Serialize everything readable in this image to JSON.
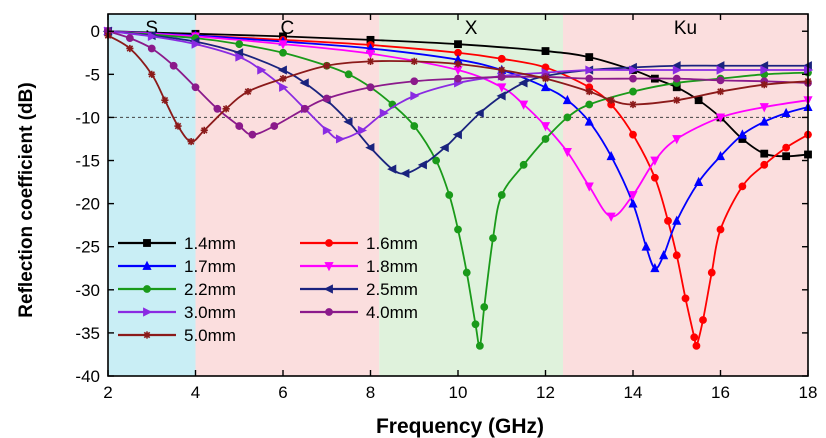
{
  "chart_data": {
    "type": "line",
    "title": "",
    "xlabel": "Frequency (GHz)",
    "ylabel": "Reflection coefficient (dB)",
    "xlim": [
      2,
      18
    ],
    "ylim": [
      -40,
      2
    ],
    "xticks": [
      2,
      4,
      6,
      8,
      10,
      12,
      14,
      16,
      18
    ],
    "yticks": [
      0,
      -5,
      -10,
      -15,
      -20,
      -25,
      -30,
      -35,
      -40
    ],
    "reference_line": -10,
    "bands": [
      {
        "label": "S",
        "x0": 2,
        "x1": 4,
        "color": "#c9eef5"
      },
      {
        "label": "C",
        "x0": 4,
        "x1": 8.2,
        "color": "#fbdede"
      },
      {
        "label": "X",
        "x0": 8.2,
        "x1": 12.4,
        "color": "#dff2dc"
      },
      {
        "label": "Ku",
        "x0": 12.4,
        "x1": 18,
        "color": "#fbdede"
      }
    ],
    "legend_position": "bottom-left",
    "series": [
      {
        "name": "1.4mm",
        "color": "#000000",
        "marker": "square",
        "points": [
          [
            2,
            0
          ],
          [
            4,
            -0.3
          ],
          [
            6,
            -0.6
          ],
          [
            8,
            -1.0
          ],
          [
            10,
            -1.5
          ],
          [
            12,
            -2.3
          ],
          [
            13,
            -3
          ],
          [
            14,
            -4.5
          ],
          [
            14.5,
            -5.5
          ],
          [
            15,
            -6.5
          ],
          [
            15.5,
            -8
          ],
          [
            16,
            -10
          ],
          [
            16.5,
            -12.5
          ],
          [
            17,
            -14.2
          ],
          [
            17.5,
            -14.5
          ],
          [
            18,
            -14.3
          ]
        ]
      },
      {
        "name": "1.6mm",
        "color": "#ff0000",
        "marker": "circle",
        "points": [
          [
            2,
            0
          ],
          [
            4,
            -0.5
          ],
          [
            6,
            -1
          ],
          [
            8,
            -1.6
          ],
          [
            10,
            -2.5
          ],
          [
            11,
            -3.2
          ],
          [
            12,
            -4.2
          ],
          [
            13,
            -6.5
          ],
          [
            13.5,
            -8.5
          ],
          [
            14,
            -12
          ],
          [
            14.5,
            -17
          ],
          [
            14.8,
            -22
          ],
          [
            15,
            -26
          ],
          [
            15.2,
            -31
          ],
          [
            15.4,
            -35.5
          ],
          [
            15.45,
            -36.5
          ],
          [
            15.6,
            -33.5
          ],
          [
            15.8,
            -28
          ],
          [
            16,
            -23
          ],
          [
            16.5,
            -18
          ],
          [
            17,
            -15.5
          ],
          [
            17.5,
            -13.5
          ],
          [
            18,
            -12
          ]
        ]
      },
      {
        "name": "1.7mm",
        "color": "#0000ff",
        "marker": "triangle-up",
        "points": [
          [
            2,
            0
          ],
          [
            4,
            -0.5
          ],
          [
            6,
            -1.2
          ],
          [
            8,
            -2
          ],
          [
            10,
            -3.3
          ],
          [
            11,
            -4.5
          ],
          [
            12,
            -6.5
          ],
          [
            12.5,
            -8
          ],
          [
            13,
            -10.5
          ],
          [
            13.5,
            -14.5
          ],
          [
            14,
            -20
          ],
          [
            14.3,
            -25
          ],
          [
            14.5,
            -27.5
          ],
          [
            14.7,
            -26
          ],
          [
            15,
            -22
          ],
          [
            15.5,
            -17.5
          ],
          [
            16,
            -14.5
          ],
          [
            16.5,
            -12
          ],
          [
            17,
            -10.5
          ],
          [
            17.5,
            -9.5
          ],
          [
            18,
            -8.8
          ]
        ]
      },
      {
        "name": "1.8mm",
        "color": "#ff00ff",
        "marker": "triangle-down",
        "points": [
          [
            2,
            0
          ],
          [
            4,
            -0.6
          ],
          [
            6,
            -1.5
          ],
          [
            8,
            -2.6
          ],
          [
            10,
            -4.5
          ],
          [
            11,
            -6.5
          ],
          [
            11.5,
            -8.5
          ],
          [
            12,
            -11
          ],
          [
            12.5,
            -14
          ],
          [
            13,
            -18
          ],
          [
            13.5,
            -21.5
          ],
          [
            14,
            -19
          ],
          [
            14.5,
            -15
          ],
          [
            15,
            -12.5
          ],
          [
            16,
            -10
          ],
          [
            17,
            -8.8
          ],
          [
            18,
            -8
          ]
        ]
      },
      {
        "name": "2.2mm",
        "color": "#1a9a1a",
        "marker": "circle",
        "points": [
          [
            2,
            0
          ],
          [
            4,
            -0.8
          ],
          [
            5,
            -1.5
          ],
          [
            6,
            -2.5
          ],
          [
            7,
            -4
          ],
          [
            7.5,
            -5
          ],
          [
            8,
            -6.5
          ],
          [
            8.5,
            -8.5
          ],
          [
            9,
            -11
          ],
          [
            9.5,
            -15
          ],
          [
            9.8,
            -19
          ],
          [
            10,
            -23
          ],
          [
            10.2,
            -28
          ],
          [
            10.4,
            -34
          ],
          [
            10.5,
            -36.5
          ],
          [
            10.6,
            -32
          ],
          [
            10.8,
            -24
          ],
          [
            11,
            -19
          ],
          [
            11.5,
            -15.5
          ],
          [
            12,
            -12.5
          ],
          [
            12.5,
            -10
          ],
          [
            13,
            -8.5
          ],
          [
            14,
            -7
          ],
          [
            15,
            -6
          ],
          [
            16,
            -5.5
          ],
          [
            17,
            -5
          ],
          [
            18,
            -4.8
          ]
        ]
      },
      {
        "name": "2.5mm",
        "color": "#1a237e",
        "marker": "triangle-left",
        "points": [
          [
            2,
            0
          ],
          [
            3,
            -0.5
          ],
          [
            4,
            -1.2
          ],
          [
            5,
            -2.5
          ],
          [
            6,
            -4.5
          ],
          [
            6.5,
            -6
          ],
          [
            7,
            -8
          ],
          [
            7.5,
            -10.5
          ],
          [
            8,
            -13.5
          ],
          [
            8.5,
            -16
          ],
          [
            8.8,
            -16.5
          ],
          [
            9.2,
            -15.5
          ],
          [
            9.7,
            -13.5
          ],
          [
            10,
            -12
          ],
          [
            10.5,
            -9.5
          ],
          [
            11,
            -7.5
          ],
          [
            11.5,
            -6
          ],
          [
            12,
            -5.2
          ],
          [
            13,
            -4.5
          ],
          [
            14,
            -4.2
          ],
          [
            15,
            -4
          ],
          [
            16,
            -4
          ],
          [
            17,
            -4
          ],
          [
            18,
            -4
          ]
        ]
      },
      {
        "name": "3.0mm",
        "color": "#8a2be2",
        "marker": "triangle-right",
        "points": [
          [
            2,
            0
          ],
          [
            3,
            -0.6
          ],
          [
            4,
            -1.5
          ],
          [
            5,
            -3
          ],
          [
            5.5,
            -4.5
          ],
          [
            6,
            -6.5
          ],
          [
            6.5,
            -9
          ],
          [
            7,
            -11.5
          ],
          [
            7.3,
            -12.5
          ],
          [
            7.8,
            -11.5
          ],
          [
            8.3,
            -9.5
          ],
          [
            9,
            -7.5
          ],
          [
            10,
            -6
          ],
          [
            11,
            -5.2
          ],
          [
            12,
            -4.8
          ],
          [
            13,
            -4.5
          ],
          [
            14,
            -4.5
          ],
          [
            15,
            -4.5
          ],
          [
            16,
            -4.5
          ],
          [
            17,
            -4.5
          ],
          [
            18,
            -4.5
          ]
        ]
      },
      {
        "name": "4.0mm",
        "color": "#8b1a8b",
        "marker": "circle",
        "points": [
          [
            2,
            0
          ],
          [
            2.5,
            -0.8
          ],
          [
            3,
            -2
          ],
          [
            3.5,
            -4
          ],
          [
            4,
            -6.5
          ],
          [
            4.5,
            -9
          ],
          [
            5,
            -11
          ],
          [
            5.3,
            -12
          ],
          [
            5.8,
            -11
          ],
          [
            6.5,
            -9
          ],
          [
            7,
            -7.8
          ],
          [
            8,
            -6.5
          ],
          [
            9,
            -5.8
          ],
          [
            10,
            -5.5
          ],
          [
            11,
            -5.3
          ],
          [
            12,
            -5.3
          ],
          [
            13,
            -5.5
          ],
          [
            14,
            -5.5
          ],
          [
            15,
            -5.5
          ],
          [
            16,
            -5.7
          ],
          [
            17,
            -5.8
          ],
          [
            18,
            -6
          ]
        ]
      },
      {
        "name": "5.0mm",
        "color": "#8b1a1a",
        "marker": "star",
        "points": [
          [
            2,
            -0.5
          ],
          [
            2.5,
            -2
          ],
          [
            3,
            -5
          ],
          [
            3.3,
            -8
          ],
          [
            3.6,
            -11
          ],
          [
            3.9,
            -12.8
          ],
          [
            4.2,
            -11.5
          ],
          [
            4.7,
            -9
          ],
          [
            5.2,
            -7
          ],
          [
            6,
            -5.5
          ],
          [
            7,
            -4
          ],
          [
            8,
            -3.5
          ],
          [
            9,
            -3.5
          ],
          [
            10,
            -3.8
          ],
          [
            11,
            -4.5
          ],
          [
            12,
            -5.5
          ],
          [
            13,
            -7
          ],
          [
            13.5,
            -8
          ],
          [
            14,
            -8.5
          ],
          [
            15,
            -8
          ],
          [
            16,
            -7
          ],
          [
            17,
            -6.2
          ],
          [
            18,
            -5.8
          ]
        ]
      }
    ]
  }
}
